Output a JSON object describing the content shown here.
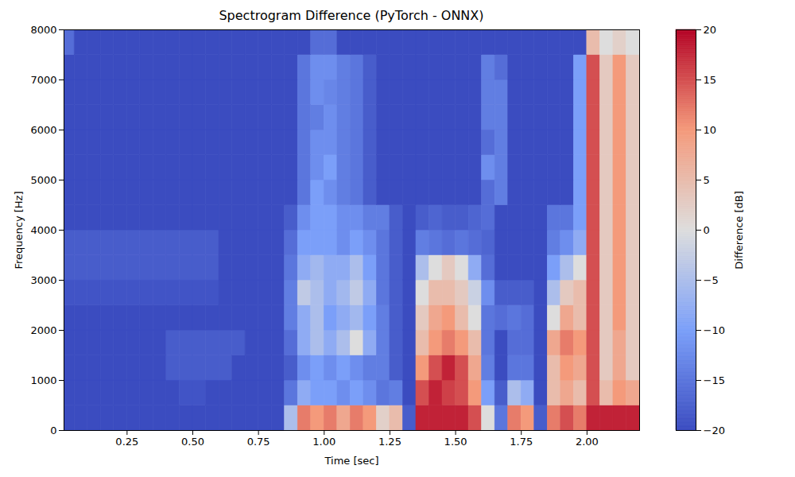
{
  "chart_data": {
    "type": "heatmap",
    "title": "Spectrogram Difference (PyTorch - ONNX)",
    "x_label": "Time [sec]",
    "y_label": "Frequency [Hz]",
    "x_edges": [
      0,
      0.05,
      0.1,
      0.15,
      0.2,
      0.25,
      0.3,
      0.35,
      0.4,
      0.45,
      0.5,
      0.55,
      0.6,
      0.65,
      0.7,
      0.75,
      0.8,
      0.85,
      0.9,
      0.95,
      1.0,
      1.05,
      1.1,
      1.15,
      1.2,
      1.25,
      1.3,
      1.35,
      1.4,
      1.45,
      1.5,
      1.55,
      1.6,
      1.65,
      1.7,
      1.75,
      1.8,
      1.85,
      1.9,
      1.95,
      2.0,
      2.05,
      2.1,
      2.15,
      2.2
    ],
    "y_edges": [
      0,
      500,
      1000,
      1500,
      2000,
      2500,
      3000,
      3500,
      4000,
      4500,
      5000,
      5500,
      6000,
      6500,
      7000,
      7500,
      8000
    ],
    "z": [
      [
        -20,
        -20,
        -20,
        -20,
        -20,
        -20,
        -20,
        -20,
        -20,
        -20,
        -20,
        -20,
        -20,
        -20,
        -20,
        -20,
        -20,
        -5,
        12,
        10,
        12,
        8,
        12,
        10,
        2,
        5,
        -18,
        18,
        18,
        18,
        18,
        15,
        0,
        -15,
        12,
        10,
        -18,
        12,
        15,
        12,
        18,
        18,
        18,
        18
      ],
      [
        -20,
        -20,
        -20,
        -20,
        -20,
        -20,
        -20,
        -20,
        -20,
        -19,
        -19,
        -20,
        -20,
        -20,
        -20,
        -20,
        -20,
        -15,
        -8,
        -10,
        -10,
        -12,
        -10,
        -12,
        -15,
        -14,
        -20,
        15,
        18,
        16,
        15,
        10,
        -10,
        -18,
        -5,
        -8,
        -20,
        5,
        8,
        5,
        15,
        5,
        10,
        8
      ],
      [
        -20,
        -20,
        -20,
        -20,
        -20,
        -20,
        -20,
        -20,
        -18,
        -18,
        -18,
        -18,
        -18,
        -20,
        -20,
        -20,
        -20,
        -18,
        -12,
        -10,
        -12,
        -10,
        -12,
        -14,
        -14,
        -18,
        -20,
        10,
        15,
        18,
        15,
        8,
        -14,
        -20,
        -15,
        -15,
        -20,
        5,
        10,
        8,
        15,
        3,
        8,
        3
      ],
      [
        -20,
        -20,
        -20,
        -20,
        -20,
        -20,
        -20,
        -20,
        -18,
        -18,
        -18,
        -18,
        -18,
        -18,
        -20,
        -20,
        -20,
        -16,
        -8,
        -5,
        -8,
        -5,
        0,
        -8,
        -14,
        -18,
        -20,
        5,
        10,
        12,
        10,
        5,
        -15,
        -20,
        -16,
        -16,
        -20,
        8,
        12,
        10,
        15,
        3,
        8,
        3
      ],
      [
        -20,
        -20,
        -20,
        -20,
        -20,
        -20,
        -20,
        -20,
        -20,
        -20,
        -20,
        -20,
        -20,
        -20,
        -20,
        -20,
        -20,
        -14,
        -8,
        -5,
        -10,
        -8,
        -6,
        -10,
        -14,
        -18,
        -20,
        3,
        8,
        10,
        5,
        0,
        -15,
        -16,
        -15,
        -16,
        -20,
        0,
        8,
        5,
        15,
        3,
        10,
        3
      ],
      [
        -19,
        -19,
        -19,
        -19,
        -19,
        -19,
        -19,
        -19,
        -19,
        -19,
        -19,
        -19,
        -20,
        -20,
        -20,
        -20,
        -20,
        -14,
        -3,
        -5,
        -8,
        -6,
        -3,
        -8,
        -15,
        -18,
        -20,
        0,
        5,
        5,
        3,
        -2,
        -12,
        -18,
        -18,
        -18,
        -20,
        -5,
        3,
        5,
        15,
        3,
        10,
        3
      ],
      [
        -18,
        -18,
        -18,
        -18,
        -18,
        -18,
        -18,
        -18,
        -18,
        -18,
        -18,
        -18,
        -20,
        -20,
        -20,
        -20,
        -20,
        -15,
        -8,
        -6,
        -8,
        -8,
        -5,
        -10,
        -15,
        -18,
        -20,
        -5,
        0,
        3,
        0,
        -8,
        -16,
        -20,
        -20,
        -20,
        -20,
        -10,
        -5,
        0,
        15,
        3,
        10,
        3
      ],
      [
        -18,
        -18,
        -18,
        -18,
        -18,
        -18,
        -18,
        -18,
        -18,
        -18,
        -18,
        -18,
        -20,
        -20,
        -20,
        -20,
        -20,
        -16,
        -10,
        -10,
        -10,
        -12,
        -10,
        -12,
        -15,
        -18,
        -20,
        -14,
        -15,
        -16,
        -15,
        -16,
        -17,
        -20,
        -20,
        -20,
        -20,
        -14,
        -12,
        -8,
        15,
        3,
        10,
        3
      ],
      [
        -20,
        -20,
        -20,
        -20,
        -20,
        -20,
        -20,
        -20,
        -20,
        -20,
        -20,
        -20,
        -20,
        -20,
        -20,
        -20,
        -20,
        -18,
        -12,
        -10,
        -10,
        -12,
        -12,
        -14,
        -14,
        -18,
        -20,
        -18,
        -17,
        -18,
        -18,
        -17,
        -16,
        -20,
        -20,
        -20,
        -20,
        -15,
        -15,
        -10,
        15,
        3,
        10,
        3
      ],
      [
        -20,
        -20,
        -20,
        -20,
        -20,
        -20,
        -20,
        -20,
        -20,
        -20,
        -20,
        -20,
        -20,
        -20,
        -20,
        -20,
        -20,
        -20,
        -15,
        -10,
        -12,
        -14,
        -15,
        -18,
        -20,
        -20,
        -20,
        -20,
        -20,
        -20,
        -20,
        -20,
        -16,
        -14,
        -20,
        -20,
        -20,
        -20,
        -20,
        -10,
        15,
        3,
        10,
        3
      ],
      [
        -20,
        -20,
        -20,
        -20,
        -20,
        -20,
        -20,
        -20,
        -20,
        -20,
        -20,
        -20,
        -20,
        -20,
        -20,
        -20,
        -20,
        -20,
        -15,
        -12,
        -10,
        -14,
        -15,
        -18,
        -20,
        -20,
        -20,
        -20,
        -20,
        -20,
        -20,
        -20,
        -12,
        -14,
        -20,
        -20,
        -20,
        -20,
        -20,
        -10,
        15,
        3,
        10,
        3
      ],
      [
        -20,
        -20,
        -20,
        -20,
        -20,
        -20,
        -20,
        -20,
        -20,
        -20,
        -20,
        -20,
        -20,
        -20,
        -20,
        -20,
        -20,
        -20,
        -15,
        -12,
        -12,
        -14,
        -15,
        -18,
        -20,
        -20,
        -20,
        -20,
        -20,
        -20,
        -20,
        -20,
        -16,
        -14,
        -20,
        -20,
        -20,
        -20,
        -20,
        -10,
        15,
        3,
        10,
        3
      ],
      [
        -20,
        -20,
        -20,
        -20,
        -20,
        -20,
        -20,
        -20,
        -20,
        -20,
        -20,
        -20,
        -20,
        -20,
        -20,
        -20,
        -20,
        -20,
        -15,
        -14,
        -12,
        -14,
        -15,
        -18,
        -20,
        -20,
        -20,
        -20,
        -20,
        -20,
        -20,
        -20,
        -14,
        -14,
        -20,
        -20,
        -20,
        -20,
        -20,
        -10,
        15,
        3,
        10,
        3
      ],
      [
        -20,
        -20,
        -20,
        -20,
        -20,
        -20,
        -20,
        -20,
        -20,
        -20,
        -20,
        -20,
        -20,
        -20,
        -20,
        -20,
        -20,
        -20,
        -15,
        -12,
        -13,
        -14,
        -15,
        -18,
        -20,
        -20,
        -20,
        -20,
        -20,
        -20,
        -20,
        -20,
        -14,
        -14,
        -20,
        -20,
        -20,
        -20,
        -20,
        -10,
        15,
        3,
        10,
        3
      ],
      [
        -20,
        -20,
        -20,
        -20,
        -20,
        -20,
        -20,
        -20,
        -20,
        -20,
        -20,
        -20,
        -20,
        -20,
        -20,
        -20,
        -20,
        -20,
        -15,
        -12,
        -12,
        -14,
        -15,
        -18,
        -20,
        -20,
        -20,
        -20,
        -20,
        -20,
        -20,
        -20,
        -14,
        -16,
        -20,
        -20,
        -20,
        -20,
        -20,
        -10,
        15,
        3,
        10,
        3
      ],
      [
        -16,
        -20,
        -20,
        -20,
        -20,
        -20,
        -20,
        -20,
        -20,
        -20,
        -20,
        -20,
        -20,
        -20,
        -20,
        -20,
        -20,
        -20,
        -20,
        -16,
        -16,
        -20,
        -20,
        -20,
        -20,
        -20,
        -20,
        -20,
        -20,
        -20,
        -20,
        -20,
        -20,
        -20,
        -20,
        -20,
        -20,
        -20,
        -20,
        -20,
        5,
        0,
        2,
        0
      ]
    ],
    "xlim": [
      0.01,
      2.2
    ],
    "ylim": [
      0,
      8000
    ],
    "xticks": [
      {
        "value": 0.25,
        "label": "0.25"
      },
      {
        "value": 0.5,
        "label": "0.50"
      },
      {
        "value": 0.75,
        "label": "0.75"
      },
      {
        "value": 1.0,
        "label": "1.00"
      },
      {
        "value": 1.25,
        "label": "1.25"
      },
      {
        "value": 1.5,
        "label": "1.50"
      },
      {
        "value": 1.75,
        "label": "1.75"
      },
      {
        "value": 2.0,
        "label": "2.00"
      }
    ],
    "yticks": [
      0,
      1000,
      2000,
      3000,
      4000,
      5000,
      6000,
      7000,
      8000
    ],
    "colorbar": {
      "label": "Difference [dB]",
      "range": [
        -20,
        20
      ],
      "ticks": [
        {
          "value": -20,
          "label": "−20"
        },
        {
          "value": -15,
          "label": "−15"
        },
        {
          "value": -10,
          "label": "−10"
        },
        {
          "value": -5,
          "label": "−5"
        },
        0,
        5,
        10,
        15,
        20
      ]
    }
  }
}
